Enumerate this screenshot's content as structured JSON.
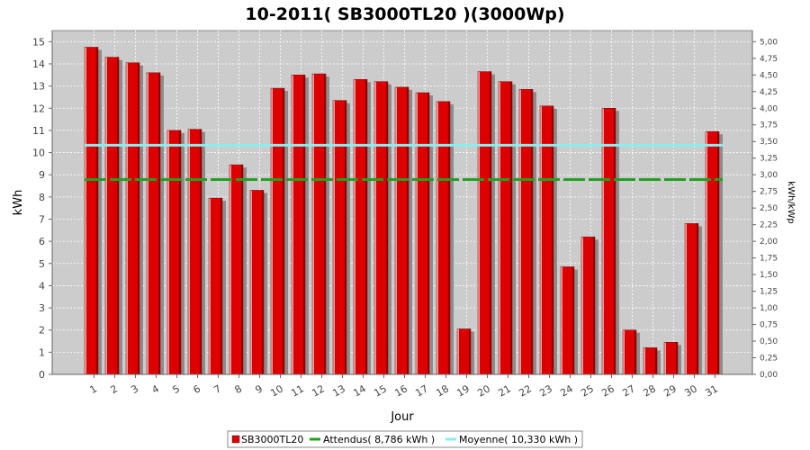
{
  "chart_data": {
    "type": "bar",
    "title": "10-2011( SB3000TL20 )(3000Wp)",
    "xlabel": "Jour",
    "ylabel": "kWh",
    "ylabel_right": "kWh/kWp",
    "ylim": [
      0,
      15.5
    ],
    "ylim_right": [
      0,
      5.1667
    ],
    "yticks": [
      "0",
      "1",
      "2",
      "3",
      "4",
      "5",
      "6",
      "7",
      "8",
      "9",
      "10",
      "11",
      "12",
      "13",
      "14",
      "15"
    ],
    "yticks_right": [
      "0,00",
      "0,25",
      "0,50",
      "0,75",
      "1,00",
      "1,25",
      "1,50",
      "1,75",
      "2,00",
      "2,25",
      "2,50",
      "2,75",
      "3,00",
      "3,25",
      "3,50",
      "3,75",
      "4,00",
      "4,25",
      "4,50",
      "4,75",
      "5,00"
    ],
    "categories": [
      "1",
      "2",
      "3",
      "4",
      "5",
      "6",
      "7",
      "8",
      "9",
      "10",
      "11",
      "12",
      "13",
      "14",
      "15",
      "16",
      "17",
      "18",
      "19",
      "20",
      "21",
      "22",
      "23",
      "24",
      "25",
      "26",
      "27",
      "28",
      "29",
      "30",
      "31"
    ],
    "series": [
      {
        "name": "SB3000TL20",
        "color": "#dd0000",
        "values": [
          14.75,
          14.3,
          14.05,
          13.6,
          11.0,
          11.05,
          7.95,
          9.45,
          8.3,
          12.9,
          13.5,
          13.55,
          12.35,
          13.3,
          13.2,
          12.95,
          12.7,
          12.3,
          2.05,
          13.65,
          13.2,
          12.85,
          12.1,
          4.85,
          6.2,
          12.0,
          2.0,
          1.2,
          1.45,
          6.8,
          10.95
        ]
      }
    ],
    "lines": [
      {
        "name": "Attendus( 8,786 kWh )",
        "value": 8.786,
        "color": "#22a022",
        "style": "dashed"
      },
      {
        "name": "Moyenne( 10,330 kWh )",
        "value": 10.33,
        "color": "#88eeee",
        "style": "solid"
      }
    ],
    "legend": [
      "SB3000TL20",
      "Attendus( 8,786 kWh )",
      "Moyenne( 10,330 kWh )"
    ],
    "legend_position": "bottom",
    "grid": true,
    "plot_background": "#cccccc"
  }
}
